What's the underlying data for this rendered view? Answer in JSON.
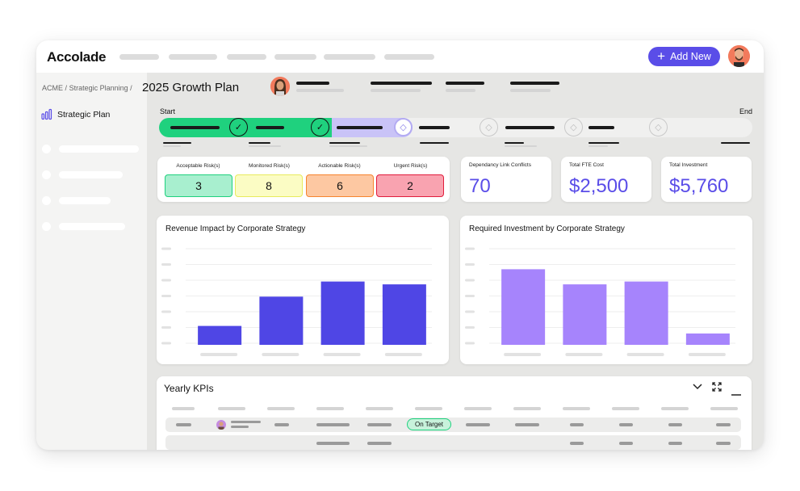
{
  "app": {
    "name": "Accolade"
  },
  "header": {
    "add_button": "Add New"
  },
  "breadcrumb": {
    "org": "ACME",
    "section": "Strategic Planning",
    "separator": "/"
  },
  "page": {
    "title": "2025 Growth Plan"
  },
  "sidebar": {
    "active_item": "Strategic Plan"
  },
  "timeline": {
    "start_label": "Start",
    "end_label": "End"
  },
  "risks": [
    {
      "label": "Acceptable Risk(s)",
      "value": "3",
      "fill": "#a8efcf",
      "border": "#1fd17e"
    },
    {
      "label": "Monitored Risk(s)",
      "value": "8",
      "fill": "#fbfcc4",
      "border": "#e8eb5e"
    },
    {
      "label": "Actionable Risk(s)",
      "value": "6",
      "fill": "#fdc8a2",
      "border": "#f7842e"
    },
    {
      "label": "Urgent Risk(s)",
      "value": "2",
      "fill": "#f9a3b0",
      "border": "#e11d3c"
    }
  ],
  "metrics": [
    {
      "label": "Dependancy Link Conflicts",
      "value": "70"
    },
    {
      "label": "Total FTE Cost",
      "value": "$2,500"
    },
    {
      "label": "Total Investment",
      "value": "$5,760"
    }
  ],
  "chart_data": [
    {
      "type": "bar",
      "title": "Revenue Impact by Corporate Strategy",
      "categories": [
        "",
        "",
        "",
        ""
      ],
      "values": [
        20,
        51,
        67,
        64
      ],
      "ylim": [
        0,
        100
      ],
      "color": "#4f46e5",
      "grid": true
    },
    {
      "type": "bar",
      "title": "Required Investment by Corporate Strategy",
      "categories": [
        "",
        "",
        "",
        ""
      ],
      "values": [
        80,
        64,
        67,
        12
      ],
      "ylim": [
        0,
        100
      ],
      "color": "#a684fc",
      "grid": true
    }
  ],
  "kpis": {
    "title": "Yearly KPIs",
    "status_badge": "On Target"
  }
}
